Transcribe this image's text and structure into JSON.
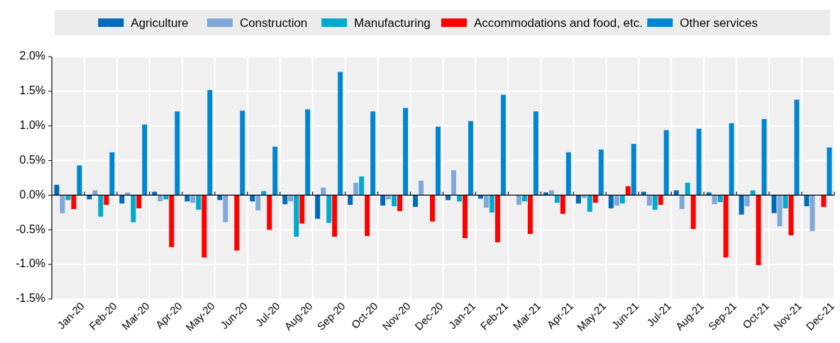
{
  "chart_data": {
    "type": "bar",
    "categories": [
      "Jan-20",
      "Feb-20",
      "Mar-20",
      "Apr-20",
      "May-20",
      "Jun-20",
      "Jul-20",
      "Aug-20",
      "Sep-20",
      "Oct-20",
      "Nov-20",
      "Dec-20",
      "Jan-21",
      "Feb-21",
      "Mar-21",
      "Apr-21",
      "May-21",
      "Jun-21",
      "Jul-21",
      "Aug-21",
      "Sep-21",
      "Oct-21",
      "Nov-21",
      "Dec-21"
    ],
    "series": [
      {
        "name": "Agriculture",
        "color": "#006bb6",
        "values": [
          0.15,
          -0.06,
          -0.12,
          0.05,
          -0.09,
          -0.07,
          -0.09,
          -0.13,
          -0.34,
          -0.14,
          -0.15,
          -0.17,
          -0.07,
          -0.05,
          0,
          0.04,
          -0.12,
          -0.19,
          0.05,
          0.07,
          0.04,
          -0.28,
          -0.26,
          -0.16
        ]
      },
      {
        "name": "Construction",
        "color": "#7fa8d9",
        "values": [
          -0.26,
          0.07,
          0.04,
          -0.09,
          -0.11,
          -0.39,
          -0.22,
          -0.09,
          0.11,
          0.18,
          -0.06,
          0.21,
          0.36,
          -0.18,
          -0.14,
          0.07,
          -0.04,
          -0.15,
          -0.15,
          -0.2,
          -0.13,
          -0.16,
          -0.45,
          -0.52
        ]
      },
      {
        "name": "Manufacturing",
        "color": "#00aacc",
        "values": [
          -0.07,
          -0.31,
          -0.39,
          -0.06,
          -0.21,
          0,
          0.06,
          -0.6,
          -0.4,
          0.27,
          -0.16,
          0,
          -0.09,
          -0.25,
          -0.09,
          -0.11,
          -0.24,
          -0.12,
          -0.21,
          0.18,
          -0.1,
          0.07,
          -0.19,
          0
        ]
      },
      {
        "name": "Accommodations and food, etc.",
        "color": "#ff0000",
        "values": [
          -0.2,
          -0.14,
          -0.19,
          -0.75,
          -0.9,
          -0.8,
          -0.5,
          -0.41,
          -0.6,
          -0.59,
          -0.23,
          -0.38,
          -0.62,
          -0.68,
          -0.56,
          -0.27,
          -0.11,
          0.13,
          -0.14,
          -0.49,
          -0.9,
          -1.01,
          -0.58,
          -0.17
        ]
      },
      {
        "name": "Other services",
        "color": "#0086d0",
        "values": [
          0.43,
          0.62,
          1.02,
          1.21,
          1.52,
          1.22,
          0.7,
          1.24,
          1.78,
          1.21,
          1.26,
          0.99,
          1.07,
          1.45,
          1.21,
          0.62,
          0.66,
          0.74,
          0.94,
          0.96,
          1.04,
          1.1,
          1.38,
          0.69
        ]
      }
    ],
    "ylim": [
      -1.5,
      2.0
    ],
    "yticks": [
      {
        "value": -1.5,
        "label": "-1.5%"
      },
      {
        "value": -1.0,
        "label": "-1.0%"
      },
      {
        "value": -0.5,
        "label": "-0.5%"
      },
      {
        "value": 0,
        "label": "0.0%"
      },
      {
        "value": 0.5,
        "label": "0.5%"
      },
      {
        "value": 1.0,
        "label": "1.0%"
      },
      {
        "value": 1.5,
        "label": "1.5%"
      },
      {
        "value": 2.0,
        "label": "2.0%"
      }
    ],
    "grid": true,
    "legend": "top"
  }
}
